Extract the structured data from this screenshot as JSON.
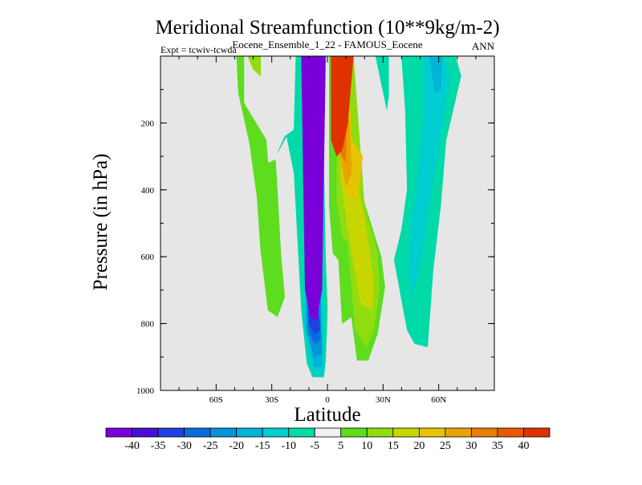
{
  "chart_data": {
    "type": "filled-contour",
    "title": "Meridional Streamfunction (10**9kg/m-2)",
    "subtitle": "Eocene_Ensemble_1_22 - FAMOUS_Eocene",
    "left_label": "Expt = tcwiv-tcwda",
    "right_label": "ANN",
    "xlabel": "Latitude",
    "ylabel": "Pressure (in hPa)",
    "x_ticks": [
      "60S",
      "30S",
      "0",
      "30N",
      "60N"
    ],
    "x_tick_values": [
      -60,
      -30,
      0,
      30,
      60
    ],
    "xlim": [
      -90,
      90
    ],
    "y_ticks": [
      "200",
      "400",
      "600",
      "800",
      "1000"
    ],
    "y_tick_values": [
      200,
      400,
      600,
      800,
      1000
    ],
    "ylim": [
      0,
      1000
    ],
    "y_reversed": true,
    "grid": false,
    "background_color": "#e6e6e6",
    "colorbar": {
      "position": "bottom",
      "labels": [
        "-40",
        "-35",
        "-30",
        "-25",
        "-20",
        "-15",
        "-10",
        "-5",
        "5",
        "10",
        "15",
        "20",
        "25",
        "30",
        "35",
        "40"
      ],
      "colors": [
        "#7a00d9",
        "#4a0fd6",
        "#2040e0",
        "#0a6cdb",
        "#0492d8",
        "#00b4d8",
        "#00cdd0",
        "#00d9a8",
        "#f0f0f0",
        "#5edc1e",
        "#90dc10",
        "#c8d600",
        "#e6c400",
        "#e9a300",
        "#e67e00",
        "#e55a00",
        "#df3200"
      ]
    },
    "regions": [
      {
        "value": 10,
        "color": "#5edc1e",
        "points": [
          [
            -49,
            0
          ],
          [
            -45,
            0
          ],
          [
            -45,
            140
          ],
          [
            -33,
            250
          ],
          [
            -32,
            320
          ],
          [
            -28,
            310
          ],
          [
            -27,
            400
          ],
          [
            -25,
            600
          ],
          [
            -23,
            720
          ],
          [
            -27,
            780
          ],
          [
            -32,
            760
          ],
          [
            -36,
            580
          ],
          [
            -38,
            420
          ],
          [
            -42,
            260
          ],
          [
            -48,
            110
          ]
        ]
      },
      {
        "value": 15,
        "color": "#90dc10",
        "points": [
          [
            -43,
            0
          ],
          [
            -36,
            0
          ],
          [
            -36,
            60
          ],
          [
            -40,
            40
          ]
        ]
      },
      {
        "value": 10,
        "color": "#5edc1e",
        "points": [
          [
            -16,
            0
          ],
          [
            -15,
            0
          ],
          [
            -15.5,
            50
          ]
        ]
      },
      {
        "value": -5,
        "color": "#00d9a8",
        "points": [
          [
            -27,
            290
          ],
          [
            -22,
            240
          ],
          [
            -18,
            350
          ],
          [
            -14,
            760
          ],
          [
            -11,
            920
          ],
          [
            -8,
            960
          ],
          [
            -2,
            960
          ],
          [
            -1,
            910
          ],
          [
            0,
            760
          ],
          [
            -1,
            600
          ],
          [
            -2,
            320
          ],
          [
            -4,
            0
          ],
          [
            -17,
            0
          ],
          [
            -18,
            220
          ],
          [
            -23,
            240
          ]
        ]
      },
      {
        "value": -10,
        "color": "#00cdd0",
        "points": [
          [
            -11,
            410
          ],
          [
            -13,
            800
          ],
          [
            -8,
            950
          ],
          [
            -2,
            960
          ],
          [
            -2,
            900
          ],
          [
            -3,
            620
          ]
        ]
      },
      {
        "value": -15,
        "color": "#00b4d8",
        "points": [
          [
            -11,
            580
          ],
          [
            -12,
            800
          ],
          [
            -7,
            930
          ],
          [
            -3,
            930
          ],
          [
            -3,
            860
          ],
          [
            -4,
            620
          ]
        ]
      },
      {
        "value": -20,
        "color": "#0492d8",
        "points": [
          [
            -11,
            680
          ],
          [
            -11,
            830
          ],
          [
            -7,
            900
          ],
          [
            -3,
            890
          ],
          [
            -4,
            700
          ]
        ]
      },
      {
        "value": -25,
        "color": "#0a6cdb",
        "points": [
          [
            -11,
            710
          ],
          [
            -10,
            820
          ],
          [
            -7,
            860
          ],
          [
            -4,
            850
          ],
          [
            -5,
            720
          ]
        ]
      },
      {
        "value": -30,
        "color": "#2040e0",
        "points": [
          [
            -10,
            720
          ],
          [
            -10,
            800
          ],
          [
            -7,
            830
          ],
          [
            -4,
            820
          ],
          [
            -5,
            730
          ]
        ]
      },
      {
        "value": -40,
        "color": "#7a00d9",
        "points": [
          [
            -14,
            0
          ],
          [
            -12,
            700
          ],
          [
            -9,
            780
          ],
          [
            -6,
            790
          ],
          [
            -3,
            700
          ],
          [
            -1,
            0
          ]
        ]
      },
      {
        "value": 10,
        "color": "#5edc1e",
        "points": [
          [
            1,
            0
          ],
          [
            1,
            450
          ],
          [
            3,
            590
          ],
          [
            6,
            610
          ],
          [
            8,
            800
          ],
          [
            13,
            780
          ],
          [
            16,
            910
          ],
          [
            22,
            910
          ],
          [
            27,
            830
          ],
          [
            31,
            690
          ],
          [
            29,
            600
          ],
          [
            20,
            440
          ],
          [
            13,
            300
          ],
          [
            12,
            0
          ]
        ]
      },
      {
        "value": 15,
        "color": "#90dc10",
        "points": [
          [
            5,
            0
          ],
          [
            5,
            430
          ],
          [
            8,
            540
          ],
          [
            11,
            560
          ],
          [
            15,
            820
          ],
          [
            21,
            870
          ],
          [
            25,
            820
          ],
          [
            28,
            700
          ],
          [
            27,
            590
          ],
          [
            20,
            450
          ],
          [
            14,
            0
          ]
        ]
      },
      {
        "value": 20,
        "color": "#c8d600",
        "points": [
          [
            7,
            0
          ],
          [
            7,
            350
          ],
          [
            11,
            520
          ],
          [
            18,
            740
          ],
          [
            24,
            760
          ],
          [
            25,
            680
          ],
          [
            20,
            480
          ],
          [
            13,
            320
          ]
        ]
      },
      {
        "value": 25,
        "color": "#e6c400",
        "points": [
          [
            6,
            0
          ],
          [
            7,
            300
          ],
          [
            10,
            410
          ],
          [
            16,
            430
          ],
          [
            19,
            300
          ],
          [
            13,
            250
          ],
          [
            12,
            150
          ],
          [
            11,
            0
          ]
        ]
      },
      {
        "value": 30,
        "color": "#e9a300",
        "points": [
          [
            6,
            0
          ],
          [
            7,
            300
          ],
          [
            10,
            390
          ],
          [
            13,
            350
          ],
          [
            12,
            200
          ],
          [
            10,
            150
          ],
          [
            10,
            0
          ]
        ]
      },
      {
        "value": 35,
        "color": "#e67e00",
        "points": [
          [
            6,
            0
          ],
          [
            7,
            290
          ],
          [
            10,
            320
          ],
          [
            10,
            200
          ]
        ]
      },
      {
        "value": 40,
        "color": "#df3200",
        "points": [
          [
            2,
            0
          ],
          [
            2,
            250
          ],
          [
            5,
            300
          ],
          [
            8,
            280
          ],
          [
            11,
            200
          ],
          [
            12,
            130
          ],
          [
            14,
            0
          ]
        ]
      },
      {
        "value": -5,
        "color": "#00d9a8",
        "points": [
          [
            26,
            0
          ],
          [
            33,
            0
          ],
          [
            33,
            120
          ],
          [
            32,
            160
          ]
        ]
      },
      {
        "value": -5,
        "color": "#00d9a8",
        "points": [
          [
            40,
            0
          ],
          [
            52,
            0
          ],
          [
            59,
            0
          ],
          [
            69,
            0
          ],
          [
            72,
            60
          ],
          [
            64,
            250
          ],
          [
            61,
            450
          ],
          [
            57,
            640
          ],
          [
            54,
            870
          ],
          [
            47,
            860
          ],
          [
            43,
            820
          ],
          [
            36,
            610
          ],
          [
            40,
            520
          ],
          [
            43,
            400
          ],
          [
            42,
            160
          ]
        ]
      },
      {
        "value": -10,
        "color": "#00cdd0",
        "points": [
          [
            52,
            0
          ],
          [
            55,
            0
          ],
          [
            62,
            0
          ],
          [
            66,
            60
          ],
          [
            63,
            160
          ],
          [
            60,
            270
          ],
          [
            56,
            400
          ],
          [
            53,
            500
          ],
          [
            50,
            620
          ],
          [
            46,
            720
          ],
          [
            44,
            640
          ],
          [
            45,
            500
          ],
          [
            50,
            300
          ],
          [
            52,
            150
          ]
        ]
      },
      {
        "value": -15,
        "color": "#00b4d8",
        "points": [
          [
            55,
            0
          ],
          [
            62,
            0
          ],
          [
            61,
            100
          ],
          [
            58,
            110
          ]
        ]
      }
    ]
  }
}
